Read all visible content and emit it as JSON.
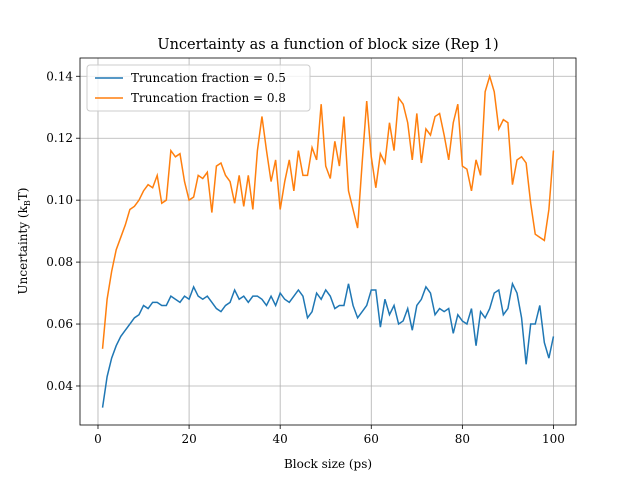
{
  "chart_data": {
    "type": "line",
    "title": "Uncertainty as a function of block size (Rep 1)",
    "x_label": "Block size (ps)",
    "y_label": [
      "Uncertainty (k",
      "B",
      "T)"
    ],
    "x": [
      1,
      2,
      3,
      4,
      5,
      6,
      7,
      8,
      9,
      10,
      11,
      12,
      13,
      14,
      15,
      16,
      17,
      18,
      19,
      20,
      21,
      22,
      23,
      24,
      25,
      26,
      27,
      28,
      29,
      30,
      31,
      32,
      33,
      34,
      35,
      36,
      37,
      38,
      39,
      40,
      41,
      42,
      43,
      44,
      45,
      46,
      47,
      48,
      49,
      50,
      51,
      52,
      53,
      54,
      55,
      56,
      57,
      58,
      59,
      60,
      61,
      62,
      63,
      64,
      65,
      66,
      67,
      68,
      69,
      70,
      71,
      72,
      73,
      74,
      75,
      76,
      77,
      78,
      79,
      80,
      81,
      82,
      83,
      84,
      85,
      86,
      87,
      88,
      89,
      90,
      91,
      92,
      93,
      94,
      95,
      96,
      97,
      98,
      99,
      100
    ],
    "series": [
      {
        "name": "Truncation fraction = 0.5",
        "color": "#1f77b4",
        "values": [
          0.033,
          0.043,
          0.049,
          0.053,
          0.056,
          0.058,
          0.06,
          0.062,
          0.063,
          0.066,
          0.065,
          0.067,
          0.067,
          0.066,
          0.066,
          0.069,
          0.068,
          0.067,
          0.069,
          0.068,
          0.072,
          0.069,
          0.068,
          0.069,
          0.067,
          0.065,
          0.064,
          0.066,
          0.067,
          0.071,
          0.068,
          0.069,
          0.067,
          0.069,
          0.069,
          0.068,
          0.066,
          0.069,
          0.066,
          0.07,
          0.068,
          0.067,
          0.069,
          0.071,
          0.069,
          0.062,
          0.064,
          0.07,
          0.068,
          0.071,
          0.069,
          0.065,
          0.066,
          0.066,
          0.073,
          0.066,
          0.062,
          0.064,
          0.066,
          0.071,
          0.071,
          0.059,
          0.068,
          0.063,
          0.066,
          0.06,
          0.061,
          0.065,
          0.058,
          0.066,
          0.068,
          0.072,
          0.07,
          0.063,
          0.065,
          0.064,
          0.065,
          0.057,
          0.063,
          0.061,
          0.06,
          0.065,
          0.053,
          0.064,
          0.062,
          0.065,
          0.07,
          0.071,
          0.063,
          0.065,
          0.073,
          0.07,
          0.062,
          0.047,
          0.06,
          0.06,
          0.066,
          0.054,
          0.049,
          0.056
        ]
      },
      {
        "name": "Truncation fraction = 0.8",
        "color": "#ff7f0e",
        "values": [
          0.052,
          0.068,
          0.077,
          0.084,
          0.088,
          0.092,
          0.097,
          0.098,
          0.1,
          0.103,
          0.105,
          0.104,
          0.108,
          0.099,
          0.1,
          0.116,
          0.114,
          0.115,
          0.106,
          0.1,
          0.101,
          0.108,
          0.107,
          0.109,
          0.096,
          0.111,
          0.112,
          0.108,
          0.106,
          0.099,
          0.108,
          0.098,
          0.108,
          0.097,
          0.116,
          0.127,
          0.116,
          0.106,
          0.113,
          0.097,
          0.106,
          0.113,
          0.103,
          0.116,
          0.108,
          0.108,
          0.117,
          0.113,
          0.131,
          0.111,
          0.107,
          0.119,
          0.111,
          0.127,
          0.103,
          0.097,
          0.091,
          0.112,
          0.132,
          0.114,
          0.104,
          0.115,
          0.112,
          0.125,
          0.116,
          0.133,
          0.131,
          0.125,
          0.113,
          0.128,
          0.112,
          0.123,
          0.121,
          0.127,
          0.128,
          0.121,
          0.113,
          0.125,
          0.131,
          0.111,
          0.11,
          0.103,
          0.113,
          0.108,
          0.135,
          0.14,
          0.135,
          0.123,
          0.126,
          0.125,
          0.105,
          0.113,
          0.114,
          0.112,
          0.099,
          0.089,
          0.088,
          0.087,
          0.097,
          0.116
        ]
      }
    ],
    "xlim": [
      -3.95,
      104.95
    ],
    "xticks": [
      0,
      20,
      40,
      60,
      80,
      100
    ],
    "ylim": [
      0.0274,
      0.1459
    ],
    "yticks": [
      0.04,
      0.06,
      0.08,
      {
        "value": 0.1,
        "label": "0.10"
      },
      0.12,
      0.14
    ],
    "grid": true,
    "legend": "upper-left"
  }
}
